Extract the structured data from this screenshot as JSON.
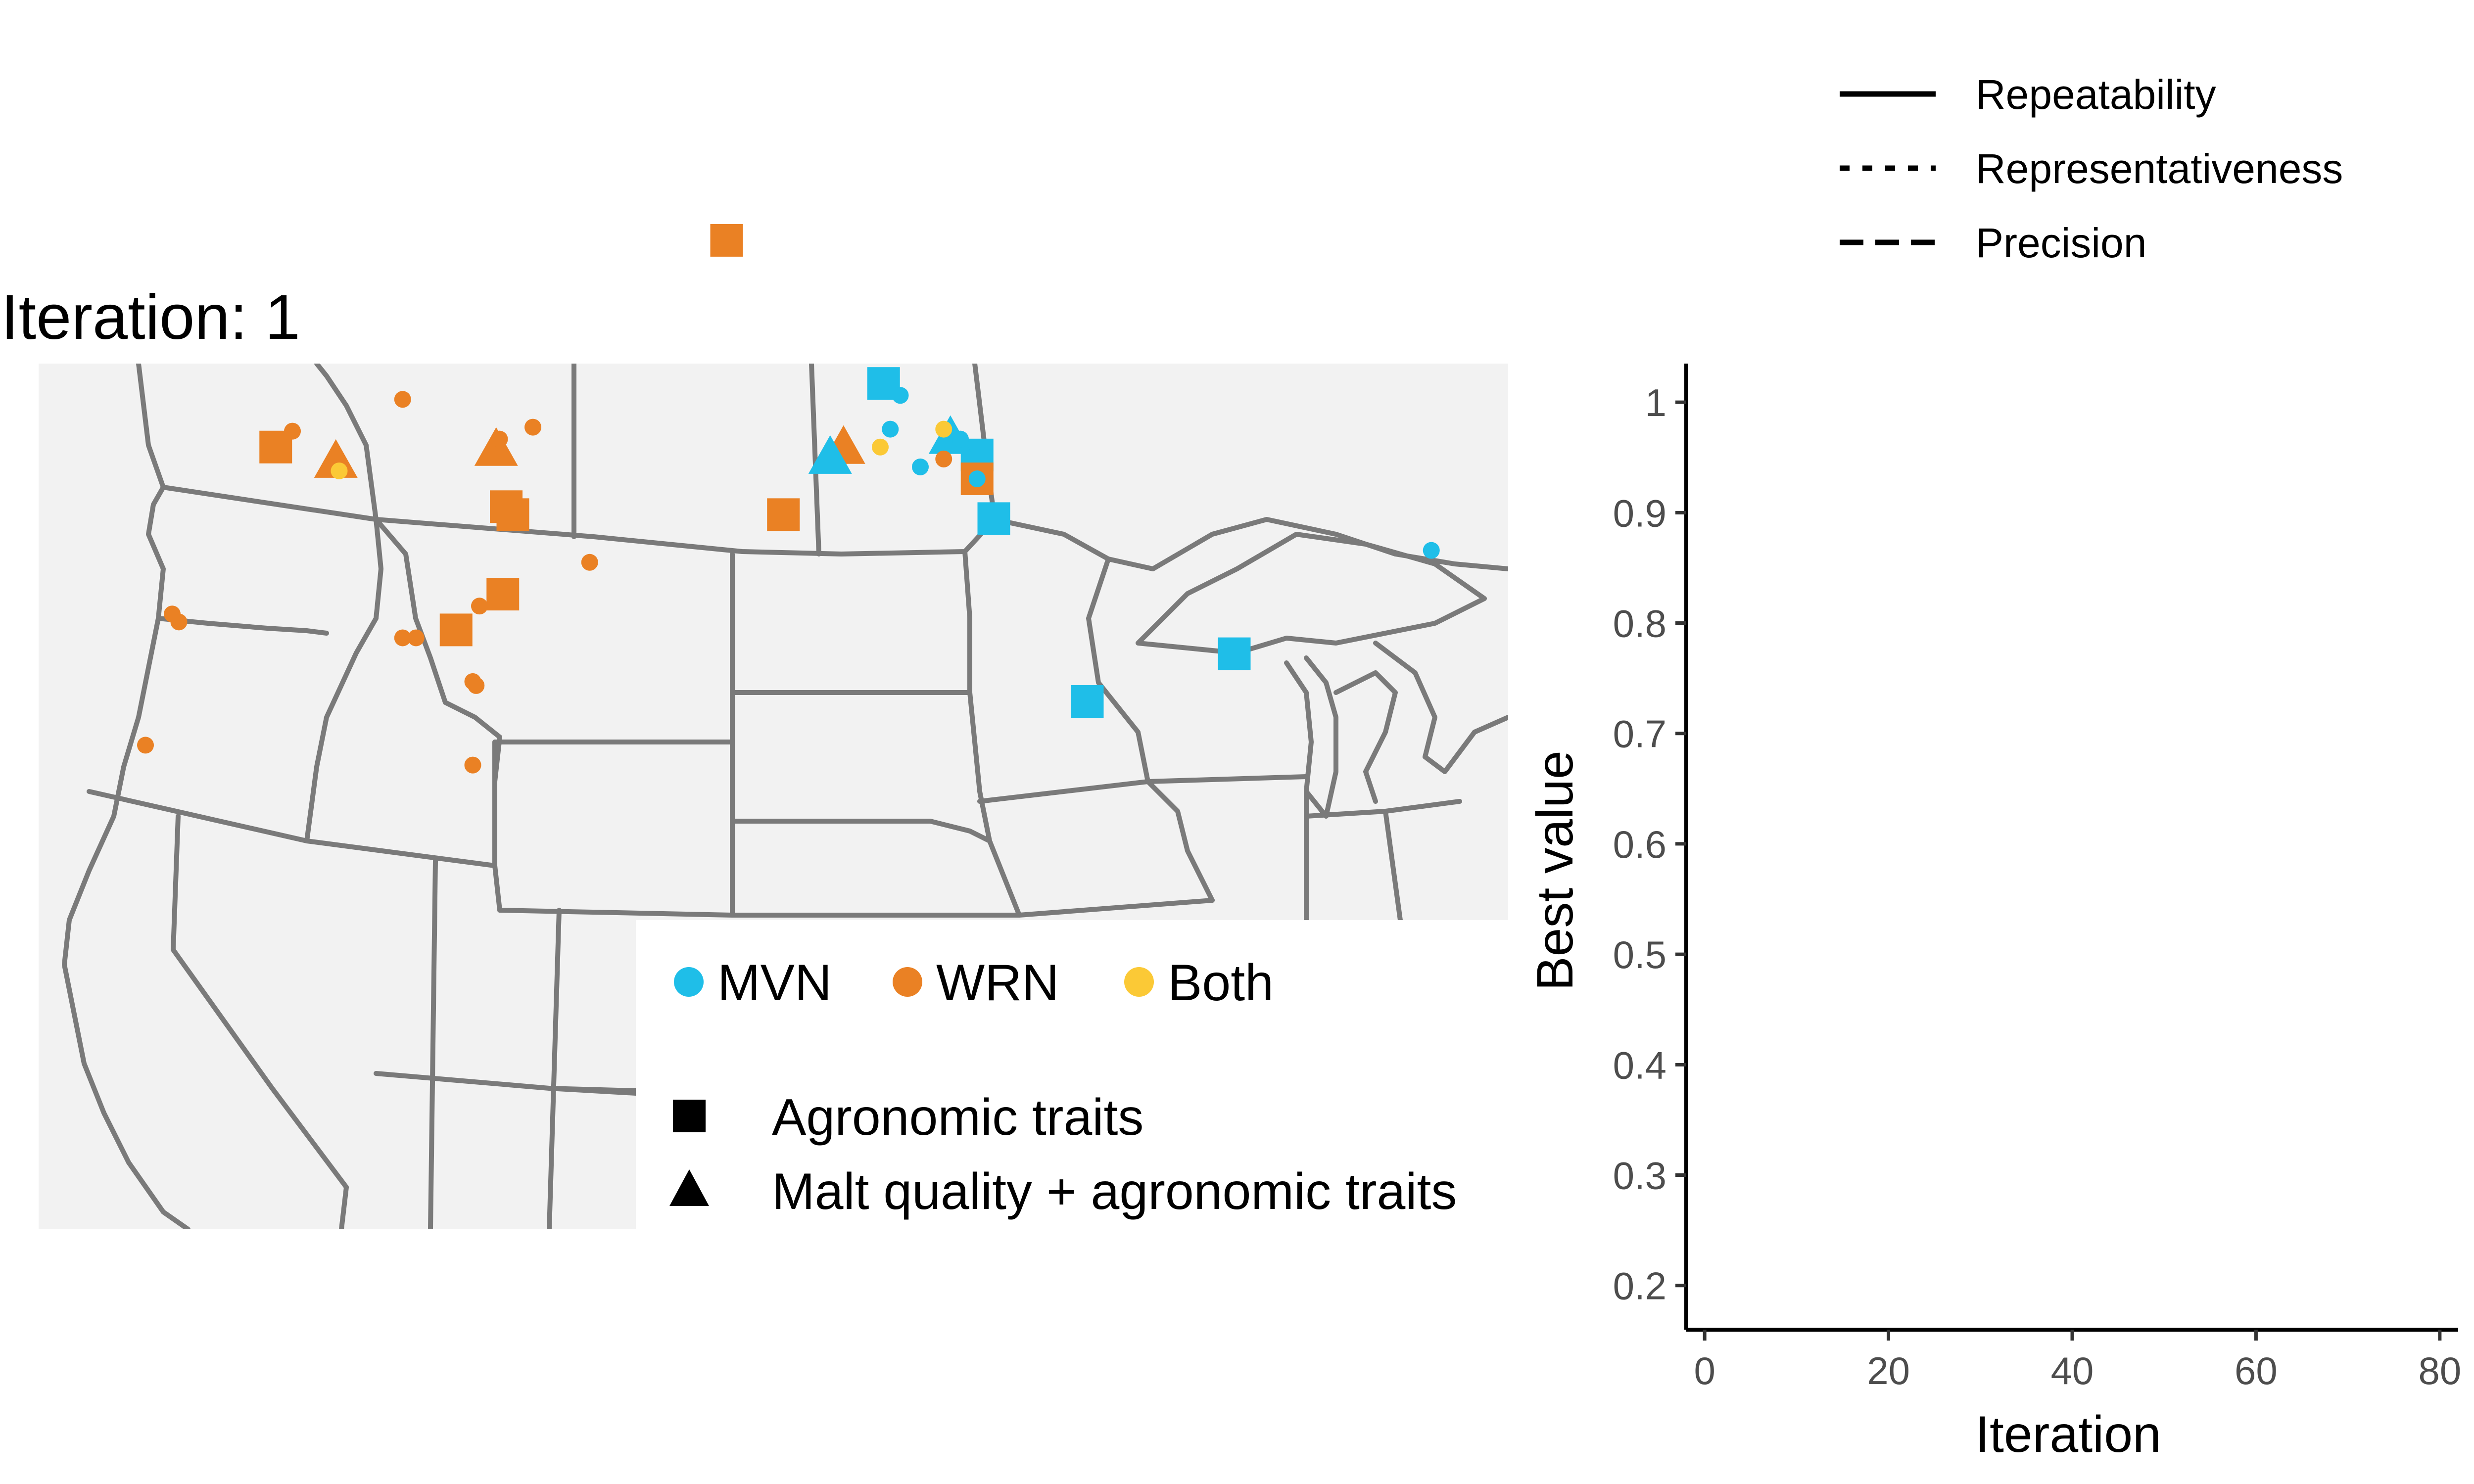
{
  "title": "Iteration: 1",
  "colors": {
    "MVN": "#1fbee8",
    "WRN": "#ea8124",
    "Both": "#fbc936",
    "map_fill": "#f2f2f2",
    "map_border": "#7a7a7a"
  },
  "map_legend": {
    "color_entries": [
      {
        "label": "MVN",
        "color_key": "MVN"
      },
      {
        "label": "WRN",
        "color_key": "WRN"
      },
      {
        "label": "Both",
        "color_key": "Both"
      }
    ],
    "shape_entries": [
      {
        "label": "Agronomic traits",
        "shape": "square"
      },
      {
        "label": "Malt quality + agronomic traits",
        "shape": "triangle"
      }
    ]
  },
  "line_legend": [
    {
      "label": "Repeatability",
      "linetype": "solid"
    },
    {
      "label": "Representativeness",
      "linetype": "dotted"
    },
    {
      "label": "Precision",
      "linetype": "dashed"
    }
  ],
  "chart_data": {
    "type": "line",
    "xlabel": "Iteration",
    "ylabel": "Best value",
    "xlim": [
      -2,
      82
    ],
    "ylim": [
      0.16,
      1.035
    ],
    "x_ticks": [
      0,
      20,
      40,
      60,
      80
    ],
    "y_ticks": [
      0.2,
      0.3,
      0.4,
      0.5,
      0.6,
      0.7,
      0.8,
      0.9,
      1
    ],
    "x_tick_labels": [
      "0",
      "20",
      "40",
      "60",
      "80"
    ],
    "y_tick_labels": [
      "0.2",
      "0.3",
      "0.4",
      "0.5",
      "0.6",
      "0.7",
      "0.8",
      "0.9",
      "1"
    ],
    "grid": false,
    "legend_position": "top",
    "series": [
      {
        "name": "Repeatability",
        "linetype": "solid",
        "x": [],
        "y": []
      },
      {
        "name": "Representativeness",
        "linetype": "dotted",
        "x": [],
        "y": []
      },
      {
        "name": "Precision",
        "linetype": "dashed",
        "x": [],
        "y": []
      }
    ]
  },
  "map_data": {
    "lon_range": [
      -125,
      -81
    ],
    "lat_range": [
      36.5,
      50.5
    ],
    "sites": [
      {
        "lon": -104.4,
        "lat": 53.6,
        "group": "WRN",
        "type": "square"
      },
      {
        "lon": -99.7,
        "lat": 50.0,
        "group": "MVN",
        "type": "square"
      },
      {
        "lon": -99.2,
        "lat": 49.7,
        "group": "MVN",
        "type": "circle"
      },
      {
        "lon": -99.5,
        "lat": 48.85,
        "group": "MVN",
        "type": "circle"
      },
      {
        "lon": -97.7,
        "lat": 48.6,
        "group": "MVN",
        "type": "triangle"
      },
      {
        "lon": -97.9,
        "lat": 48.85,
        "group": "Both",
        "type": "circle"
      },
      {
        "lon": -97.4,
        "lat": 48.6,
        "group": "MVN",
        "type": "circle"
      },
      {
        "lon": -97.9,
        "lat": 48.1,
        "group": "WRN",
        "type": "circle"
      },
      {
        "lon": -99.8,
        "lat": 48.4,
        "group": "Both",
        "type": "circle"
      },
      {
        "lon": -98.6,
        "lat": 47.9,
        "group": "MVN",
        "type": "circle"
      },
      {
        "lon": -96.9,
        "lat": 48.2,
        "group": "MVN",
        "type": "square"
      },
      {
        "lon": -96.9,
        "lat": 47.6,
        "group": "WRN",
        "type": "square"
      },
      {
        "lon": -96.9,
        "lat": 47.6,
        "group": "MVN",
        "type": "circle"
      },
      {
        "lon": -96.4,
        "lat": 46.6,
        "group": "MVN",
        "type": "square"
      },
      {
        "lon": -100.9,
        "lat": 48.35,
        "group": "WRN",
        "type": "triangle"
      },
      {
        "lon": -101.3,
        "lat": 48.1,
        "group": "MVN",
        "type": "triangle"
      },
      {
        "lon": -102.7,
        "lat": 46.7,
        "group": "WRN",
        "type": "square"
      },
      {
        "lon": -117.4,
        "lat": 48.8,
        "group": "WRN",
        "type": "circle"
      },
      {
        "lon": -117.9,
        "lat": 48.4,
        "group": "WRN",
        "type": "square"
      },
      {
        "lon": -116.1,
        "lat": 48.0,
        "group": "WRN",
        "type": "triangle"
      },
      {
        "lon": -116.0,
        "lat": 47.8,
        "group": "Both",
        "type": "circle"
      },
      {
        "lon": -114.1,
        "lat": 49.6,
        "group": "WRN",
        "type": "circle"
      },
      {
        "lon": -111.2,
        "lat": 48.6,
        "group": "WRN",
        "type": "circle"
      },
      {
        "lon": -110.2,
        "lat": 48.9,
        "group": "WRN",
        "type": "circle"
      },
      {
        "lon": -111.3,
        "lat": 48.3,
        "group": "WRN",
        "type": "triangle"
      },
      {
        "lon": -111.0,
        "lat": 46.9,
        "group": "WRN",
        "type": "square"
      },
      {
        "lon": -110.8,
        "lat": 46.7,
        "group": "WRN",
        "type": "square"
      },
      {
        "lon": -108.5,
        "lat": 45.5,
        "group": "WRN",
        "type": "circle"
      },
      {
        "lon": -111.1,
        "lat": 44.7,
        "group": "WRN",
        "type": "square"
      },
      {
        "lon": -111.8,
        "lat": 44.4,
        "group": "WRN",
        "type": "circle"
      },
      {
        "lon": -112.5,
        "lat": 43.8,
        "group": "WRN",
        "type": "square"
      },
      {
        "lon": -113.7,
        "lat": 43.6,
        "group": "WRN",
        "type": "circle"
      },
      {
        "lon": -114.1,
        "lat": 43.6,
        "group": "WRN",
        "type": "circle"
      },
      {
        "lon": -112.0,
        "lat": 42.5,
        "group": "WRN",
        "type": "circle"
      },
      {
        "lon": -111.9,
        "lat": 42.4,
        "group": "WRN",
        "type": "circle"
      },
      {
        "lon": -121.0,
        "lat": 44.2,
        "group": "WRN",
        "type": "circle"
      },
      {
        "lon": -120.8,
        "lat": 44.0,
        "group": "WRN",
        "type": "circle"
      },
      {
        "lon": -121.8,
        "lat": 40.9,
        "group": "WRN",
        "type": "circle"
      },
      {
        "lon": -112.0,
        "lat": 40.4,
        "group": "WRN",
        "type": "circle"
      },
      {
        "lon": -93.6,
        "lat": 42.0,
        "group": "MVN",
        "type": "square"
      },
      {
        "lon": -89.2,
        "lat": 43.2,
        "group": "MVN",
        "type": "square"
      },
      {
        "lon": -83.3,
        "lat": 45.8,
        "group": "MVN",
        "type": "circle"
      }
    ]
  }
}
